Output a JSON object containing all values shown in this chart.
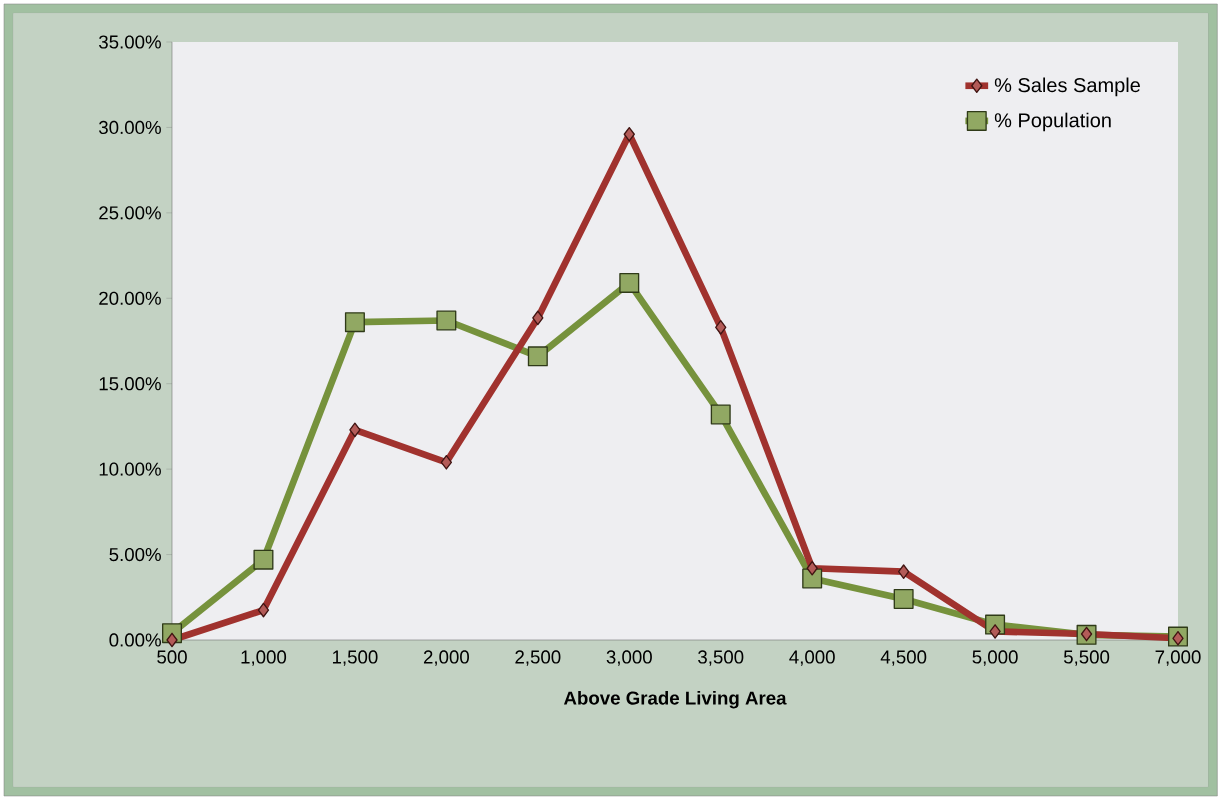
{
  "chart_data": {
    "type": "line",
    "xlabel": "Above Grade Living Area",
    "categories": [
      "500",
      "1,000",
      "1,500",
      "2,000",
      "2,500",
      "3,000",
      "3,500",
      "4,000",
      "4,500",
      "5,000",
      "5,500",
      "7,000"
    ],
    "series": [
      {
        "name": "% Sales Sample",
        "color": "#a0322e",
        "marker": "diamond",
        "values": [
          0.0,
          1.75,
          12.3,
          10.4,
          18.85,
          29.6,
          18.3,
          4.2,
          4.0,
          0.5,
          0.35,
          0.1
        ]
      },
      {
        "name": "% Population",
        "color": "#76923c",
        "marker": "square",
        "values": [
          0.4,
          4.7,
          18.6,
          18.7,
          16.6,
          20.9,
          13.2,
          3.6,
          2.4,
          0.9,
          0.3,
          0.2
        ]
      }
    ],
    "ylim": [
      0,
      35
    ],
    "yticks": [
      {
        "value": 0,
        "label": "0.00%"
      },
      {
        "value": 5,
        "label": "5.00%"
      },
      {
        "value": 10,
        "label": "10.00%"
      },
      {
        "value": 15,
        "label": "15.00%"
      },
      {
        "value": 20,
        "label": "20.00%"
      },
      {
        "value": 25,
        "label": "25.00%"
      },
      {
        "value": 30,
        "label": "30.00%"
      },
      {
        "value": 35,
        "label": "35.00%"
      }
    ],
    "grid": false,
    "legend": "top right",
    "line_style": "solid"
  }
}
